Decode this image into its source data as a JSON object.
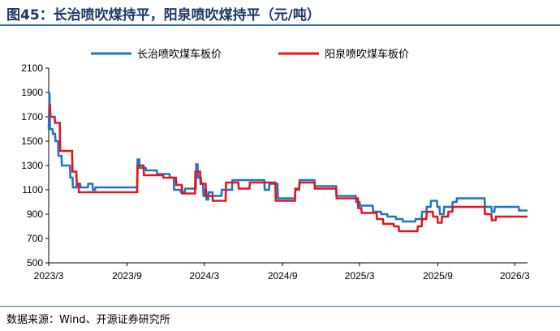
{
  "figure_title": "图45：长治喷吹煤持平，阳泉喷吹煤持平（元/吨）",
  "source_note": "数据来源：Wind、开源证券研究所",
  "chart_data": {
    "type": "line",
    "title": "",
    "xlabel": "",
    "ylabel": "",
    "ylim": [
      500,
      2100
    ],
    "yticks": [
      500,
      700,
      900,
      1100,
      1300,
      1500,
      1700,
      1900,
      2100
    ],
    "xlim": [
      "2023-03-01",
      "2026-03-31"
    ],
    "xtick_labels": [
      "2023/3",
      "2023/9",
      "2024/3",
      "2024/9",
      "2025/3",
      "2025/9",
      "2026/3"
    ],
    "xtick_dates": [
      "2023-03-01",
      "2023-09-01",
      "2024-03-01",
      "2024-09-01",
      "2025-03-01",
      "2025-09-01",
      "2026-03-01"
    ],
    "grid": false,
    "legend": "top-center",
    "series": [
      {
        "name": "长治喷吹煤车板价",
        "color": "#1f77c4",
        "points": [
          [
            "2023-03-01",
            1600
          ],
          [
            "2023-03-03",
            1900
          ],
          [
            "2023-03-04",
            1600
          ],
          [
            "2023-03-10",
            1600
          ],
          [
            "2023-03-11",
            1560
          ],
          [
            "2023-03-16",
            1560
          ],
          [
            "2023-03-17",
            1500
          ],
          [
            "2023-03-23",
            1500
          ],
          [
            "2023-03-24",
            1380
          ],
          [
            "2023-03-31",
            1380
          ],
          [
            "2023-04-01",
            1300
          ],
          [
            "2023-04-20",
            1300
          ],
          [
            "2023-04-21",
            1200
          ],
          [
            "2023-04-26",
            1200
          ],
          [
            "2023-04-27",
            1120
          ],
          [
            "2023-05-05",
            1120
          ],
          [
            "2023-05-06",
            1150
          ],
          [
            "2023-05-14",
            1150
          ],
          [
            "2023-05-15",
            1120
          ],
          [
            "2023-06-01",
            1120
          ],
          [
            "2023-06-02",
            1150
          ],
          [
            "2023-06-12",
            1150
          ],
          [
            "2023-06-13",
            1100
          ],
          [
            "2023-06-18",
            1100
          ],
          [
            "2023-06-19",
            1120
          ],
          [
            "2023-09-25",
            1120
          ],
          [
            "2023-09-26",
            1350
          ],
          [
            "2023-09-30",
            1350
          ],
          [
            "2023-10-01",
            1280
          ],
          [
            "2023-10-15",
            1280
          ],
          [
            "2023-10-16",
            1260
          ],
          [
            "2023-11-10",
            1260
          ],
          [
            "2023-11-11",
            1230
          ],
          [
            "2023-12-10",
            1230
          ],
          [
            "2023-12-11",
            1200
          ],
          [
            "2023-12-20",
            1200
          ],
          [
            "2023-12-21",
            1100
          ],
          [
            "2024-01-05",
            1100
          ],
          [
            "2024-01-06",
            1080
          ],
          [
            "2024-01-15",
            1080
          ],
          [
            "2024-01-16",
            1110
          ],
          [
            "2024-02-10",
            1110
          ],
          [
            "2024-02-11",
            1310
          ],
          [
            "2024-02-14",
            1310
          ],
          [
            "2024-02-15",
            1200
          ],
          [
            "2024-02-22",
            1200
          ],
          [
            "2024-02-23",
            1150
          ],
          [
            "2024-02-27",
            1150
          ],
          [
            "2024-02-28",
            1050
          ],
          [
            "2024-03-02",
            1050
          ],
          [
            "2024-03-03",
            1100
          ],
          [
            "2024-03-05",
            1100
          ],
          [
            "2024-03-06",
            1020
          ],
          [
            "2024-03-10",
            1020
          ],
          [
            "2024-03-11",
            1080
          ],
          [
            "2024-03-20",
            1080
          ],
          [
            "2024-03-21",
            1050
          ],
          [
            "2024-04-10",
            1050
          ],
          [
            "2024-04-11",
            1100
          ],
          [
            "2024-05-05",
            1100
          ],
          [
            "2024-05-06",
            1180
          ],
          [
            "2024-07-20",
            1180
          ],
          [
            "2024-07-21",
            1100
          ],
          [
            "2024-07-31",
            1100
          ],
          [
            "2024-08-01",
            1150
          ],
          [
            "2024-08-20",
            1150
          ],
          [
            "2024-08-21",
            1030
          ],
          [
            "2024-09-30",
            1030
          ],
          [
            "2024-10-01",
            1100
          ],
          [
            "2024-10-10",
            1100
          ],
          [
            "2024-10-11",
            1180
          ],
          [
            "2024-11-15",
            1180
          ],
          [
            "2024-11-16",
            1130
          ],
          [
            "2025-01-05",
            1130
          ],
          [
            "2025-01-06",
            1050
          ],
          [
            "2025-02-20",
            1050
          ],
          [
            "2025-02-21",
            1000
          ],
          [
            "2025-03-01",
            1000
          ],
          [
            "2025-03-02",
            970
          ],
          [
            "2025-04-01",
            970
          ],
          [
            "2025-04-02",
            920
          ],
          [
            "2025-04-20",
            920
          ],
          [
            "2025-04-21",
            900
          ],
          [
            "2025-05-05",
            900
          ],
          [
            "2025-05-06",
            880
          ],
          [
            "2025-05-25",
            880
          ],
          [
            "2025-05-26",
            860
          ],
          [
            "2025-06-10",
            860
          ],
          [
            "2025-06-11",
            840
          ],
          [
            "2025-07-10",
            840
          ],
          [
            "2025-07-11",
            860
          ],
          [
            "2025-07-25",
            860
          ],
          [
            "2025-07-26",
            920
          ],
          [
            "2025-08-05",
            920
          ],
          [
            "2025-08-06",
            960
          ],
          [
            "2025-08-15",
            960
          ],
          [
            "2025-08-16",
            1010
          ],
          [
            "2025-08-30",
            1010
          ],
          [
            "2025-08-31",
            960
          ],
          [
            "2025-09-05",
            960
          ],
          [
            "2025-09-06",
            900
          ],
          [
            "2025-09-15",
            900
          ],
          [
            "2025-09-16",
            960
          ],
          [
            "2025-10-05",
            960
          ],
          [
            "2025-10-06",
            1000
          ],
          [
            "2025-10-15",
            1000
          ],
          [
            "2025-10-16",
            1030
          ],
          [
            "2025-12-20",
            1030
          ],
          [
            "2025-12-21",
            960
          ],
          [
            "2026-01-05",
            960
          ],
          [
            "2026-01-06",
            920
          ],
          [
            "2026-01-12",
            920
          ],
          [
            "2026-01-13",
            960
          ],
          [
            "2026-03-10",
            960
          ],
          [
            "2026-03-11",
            930
          ],
          [
            "2026-03-31",
            930
          ]
        ]
      },
      {
        "name": "阳泉喷吹煤车板价",
        "color": "#e8141c",
        "points": [
          [
            "2023-03-01",
            1800
          ],
          [
            "2023-03-04",
            1800
          ],
          [
            "2023-03-05",
            1700
          ],
          [
            "2023-03-15",
            1700
          ],
          [
            "2023-03-16",
            1650
          ],
          [
            "2023-03-27",
            1650
          ],
          [
            "2023-03-28",
            1420
          ],
          [
            "2023-04-25",
            1420
          ],
          [
            "2023-04-26",
            1250
          ],
          [
            "2023-05-05",
            1250
          ],
          [
            "2023-05-06",
            1150
          ],
          [
            "2023-05-10",
            1150
          ],
          [
            "2023-05-11",
            1080
          ],
          [
            "2023-09-25",
            1080
          ],
          [
            "2023-09-26",
            1300
          ],
          [
            "2023-10-10",
            1300
          ],
          [
            "2023-10-11",
            1220
          ],
          [
            "2023-11-25",
            1220
          ],
          [
            "2023-11-26",
            1200
          ],
          [
            "2023-12-25",
            1200
          ],
          [
            "2023-12-26",
            1140
          ],
          [
            "2024-01-08",
            1140
          ],
          [
            "2024-01-09",
            1070
          ],
          [
            "2024-02-08",
            1070
          ],
          [
            "2024-02-09",
            1250
          ],
          [
            "2024-02-20",
            1250
          ],
          [
            "2024-02-21",
            1150
          ],
          [
            "2024-03-04",
            1150
          ],
          [
            "2024-03-05",
            1050
          ],
          [
            "2024-03-20",
            1050
          ],
          [
            "2024-03-21",
            1010
          ],
          [
            "2024-04-20",
            1010
          ],
          [
            "2024-04-21",
            1160
          ],
          [
            "2024-05-20",
            1160
          ],
          [
            "2024-05-21",
            1110
          ],
          [
            "2024-06-15",
            1110
          ],
          [
            "2024-06-16",
            1160
          ],
          [
            "2024-08-15",
            1160
          ],
          [
            "2024-08-16",
            1010
          ],
          [
            "2024-09-30",
            1010
          ],
          [
            "2024-10-01",
            1110
          ],
          [
            "2024-10-10",
            1110
          ],
          [
            "2024-10-11",
            1160
          ],
          [
            "2024-11-15",
            1160
          ],
          [
            "2024-11-16",
            1110
          ],
          [
            "2025-01-05",
            1110
          ],
          [
            "2025-01-06",
            1030
          ],
          [
            "2025-02-25",
            1030
          ],
          [
            "2025-02-26",
            950
          ],
          [
            "2025-03-05",
            950
          ],
          [
            "2025-03-06",
            910
          ],
          [
            "2025-04-10",
            910
          ],
          [
            "2025-04-11",
            860
          ],
          [
            "2025-04-25",
            860
          ],
          [
            "2025-04-26",
            820
          ],
          [
            "2025-05-20",
            820
          ],
          [
            "2025-05-21",
            800
          ],
          [
            "2025-06-01",
            800
          ],
          [
            "2025-06-02",
            760
          ],
          [
            "2025-07-15",
            760
          ],
          [
            "2025-07-16",
            800
          ],
          [
            "2025-07-25",
            800
          ],
          [
            "2025-07-26",
            860
          ],
          [
            "2025-08-05",
            860
          ],
          [
            "2025-08-06",
            920
          ],
          [
            "2025-08-20",
            920
          ],
          [
            "2025-08-21",
            880
          ],
          [
            "2025-08-31",
            880
          ],
          [
            "2025-09-01",
            830
          ],
          [
            "2025-09-10",
            830
          ],
          [
            "2025-09-11",
            880
          ],
          [
            "2025-09-25",
            880
          ],
          [
            "2025-09-26",
            920
          ],
          [
            "2025-10-05",
            920
          ],
          [
            "2025-10-06",
            960
          ],
          [
            "2025-12-20",
            960
          ],
          [
            "2025-12-21",
            900
          ],
          [
            "2026-01-05",
            900
          ],
          [
            "2026-01-06",
            850
          ],
          [
            "2026-01-15",
            850
          ],
          [
            "2026-01-16",
            880
          ],
          [
            "2026-03-31",
            880
          ]
        ]
      }
    ]
  }
}
